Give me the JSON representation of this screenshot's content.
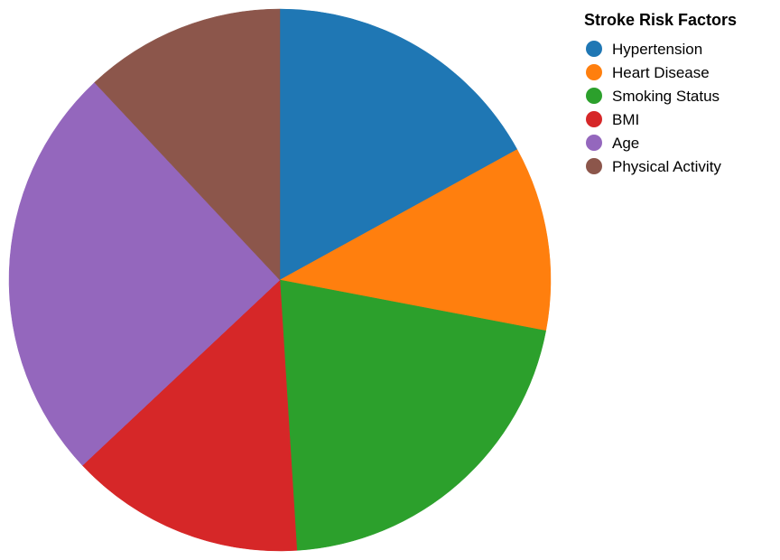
{
  "chart_data": {
    "type": "pie",
    "legend_title": "Stroke Risk Factors",
    "legend_position": "top-right",
    "categories": [
      "Hypertension",
      "Heart Disease",
      "Smoking Status",
      "BMI",
      "Age",
      "Physical Activity"
    ],
    "values": [
      0.17,
      0.11,
      0.21,
      0.14,
      0.25,
      0.12
    ],
    "colors": [
      "#1f77b4",
      "#ff7f0e",
      "#2ca02c",
      "#d62728",
      "#9467bd",
      "#8c564b"
    ],
    "start_angle_deg": 0,
    "direction": "clockwise"
  }
}
